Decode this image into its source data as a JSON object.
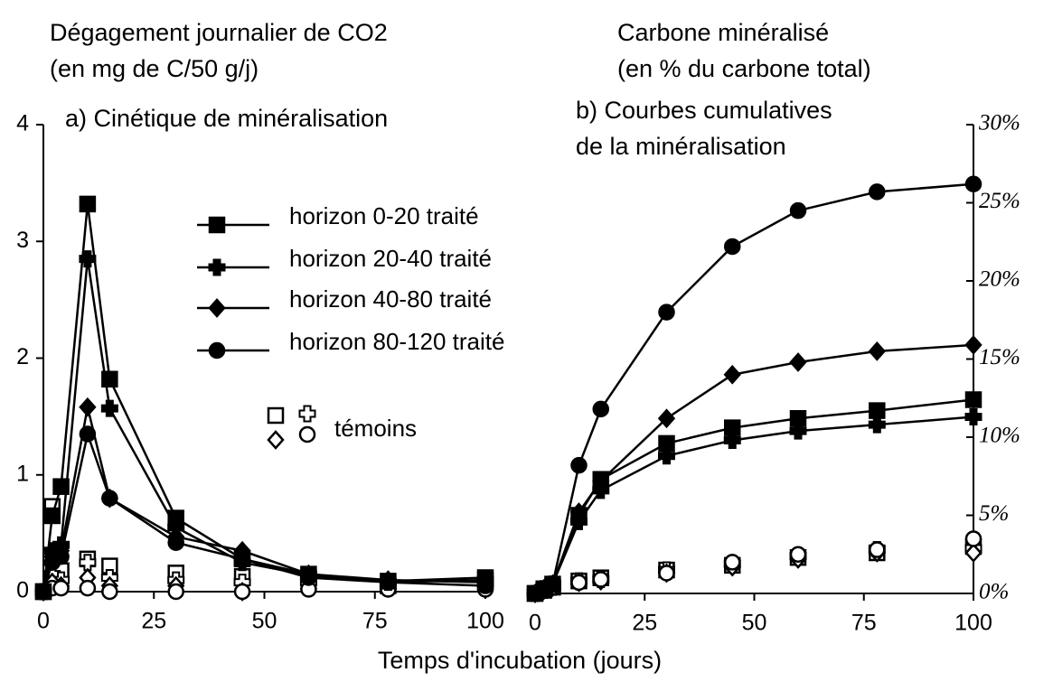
{
  "xlabel": "Temps d'incubation (jours)",
  "chart_data": [
    {
      "type": "line",
      "axis_title": [
        "Dégagement journalier de CO2",
        "(en mg de C/50 g/j)"
      ],
      "title": [
        "a) Cinétique de minéralisation"
      ],
      "x": [
        0,
        2,
        4,
        10,
        15,
        30,
        45,
        60,
        78,
        100
      ],
      "xlim": [
        0,
        100
      ],
      "xticks": [
        0,
        25,
        50,
        75,
        100
      ],
      "ylim": [
        0,
        4
      ],
      "yticks": [
        0,
        1,
        2,
        3,
        4
      ],
      "controls_label": "témoins",
      "series": [
        {
          "name": "horizon 0-20 traité",
          "color": "#000000",
          "marker": "square",
          "filled": true,
          "values": [
            0,
            0.65,
            0.9,
            3.32,
            1.82,
            0.63,
            0.28,
            0.15,
            0.09,
            0.12
          ]
        },
        {
          "name": "horizon 20-40 traité",
          "color": "#000000",
          "marker": "plus",
          "filled": true,
          "values": [
            0,
            0.35,
            0.4,
            2.85,
            1.57,
            0.55,
            0.25,
            0.14,
            0.08,
            0.1
          ]
        },
        {
          "name": "horizon 40-80 traité",
          "color": "#000000",
          "marker": "diamond",
          "filled": true,
          "values": [
            0,
            0.3,
            0.35,
            1.58,
            0.8,
            0.47,
            0.35,
            0.15,
            0.1,
            0.08
          ]
        },
        {
          "name": "horizon 80-120 traité",
          "color": "#000000",
          "marker": "circle",
          "filled": true,
          "values": [
            0,
            0.25,
            0.3,
            1.35,
            0.8,
            0.42,
            0.28,
            0.12,
            0.08,
            0.05
          ]
        },
        {
          "color": "#000000",
          "marker": "square",
          "filled": false,
          "values": [
            0,
            0.73,
            0.18,
            0.28,
            0.22,
            0.16,
            0.13,
            0.12,
            0.05,
            0.1
          ]
        },
        {
          "color": "#000000",
          "marker": "plus",
          "filled": false,
          "values": [
            0,
            0.15,
            0.1,
            0.25,
            0.12,
            0.1,
            0.08,
            0.08,
            0.05,
            0.07
          ]
        },
        {
          "color": "#000000",
          "marker": "diamond",
          "filled": false,
          "values": [
            0,
            0.08,
            0.05,
            0.12,
            0.05,
            0.05,
            0,
            0.03,
            0.03,
            0.02
          ]
        },
        {
          "color": "#000000",
          "marker": "circle",
          "filled": false,
          "values": [
            0,
            0.03,
            0.03,
            0.03,
            0,
            0,
            0,
            0.02,
            0.02,
            0.02
          ]
        }
      ]
    },
    {
      "type": "line",
      "axis_title": [
        "Carbone minéralisé",
        "(en % du carbone total)"
      ],
      "title": [
        "b) Courbes cumulatives",
        "de la minéralisation"
      ],
      "x": [
        0,
        2,
        4,
        10,
        15,
        30,
        45,
        60,
        78,
        100
      ],
      "xlim": [
        0,
        100
      ],
      "xticks": [
        0,
        25,
        50,
        75,
        100
      ],
      "y2lim": [
        0,
        30
      ],
      "y2ticks": [
        {
          "value": 0,
          "label": "0%"
        },
        {
          "value": 5,
          "label": "5%"
        },
        {
          "value": 10,
          "label": "10%"
        },
        {
          "value": 15,
          "label": "15%"
        },
        {
          "value": 20,
          "label": "20%"
        },
        {
          "value": 25,
          "label": "25%"
        },
        {
          "value": 30,
          "label": "30%"
        }
      ],
      "series": [
        {
          "color": "#000000",
          "marker": "square",
          "filled": true,
          "axis": "y2",
          "values": [
            0,
            0.3,
            0.6,
            5,
            7.3,
            9.6,
            10.6,
            11.2,
            11.7,
            12.4
          ]
        },
        {
          "color": "#000000",
          "marker": "plus",
          "filled": true,
          "axis": "y2",
          "values": [
            0,
            0.3,
            0.6,
            4.6,
            6.6,
            8.8,
            9.8,
            10.4,
            10.8,
            11.3
          ]
        },
        {
          "color": "#000000",
          "marker": "diamond",
          "filled": true,
          "axis": "y2",
          "values": [
            0,
            0.3,
            0.6,
            5.2,
            7.2,
            11.2,
            14,
            14.8,
            15.5,
            15.9
          ]
        },
        {
          "color": "#000000",
          "marker": "circle",
          "filled": true,
          "axis": "y2",
          "values": [
            0,
            0.3,
            0.6,
            8.2,
            11.8,
            18,
            22.2,
            24.5,
            25.7,
            26.2
          ]
        },
        {
          "color": "#000000",
          "marker": "square",
          "filled": false,
          "axis": "y2",
          "values": [
            0,
            0.2,
            0.4,
            0.8,
            1,
            1.5,
            1.8,
            2.3,
            2.6,
            3
          ]
        },
        {
          "color": "#000000",
          "marker": "plus",
          "filled": false,
          "axis": "y2",
          "values": [
            0,
            0.2,
            0.4,
            0.8,
            0.9,
            1.5,
            1.9,
            2.4,
            2.8,
            2.9
          ]
        },
        {
          "color": "#000000",
          "marker": "diamond",
          "filled": false,
          "axis": "y2",
          "values": [
            0,
            0.2,
            0.4,
            0.7,
            0.8,
            1.3,
            1.7,
            2.2,
            2.6,
            2.6
          ]
        },
        {
          "color": "#000000",
          "marker": "circle",
          "filled": false,
          "axis": "y2",
          "values": [
            0,
            0.2,
            0.4,
            0.7,
            0.9,
            1.3,
            2,
            2.5,
            2.8,
            3.5
          ]
        }
      ]
    }
  ]
}
